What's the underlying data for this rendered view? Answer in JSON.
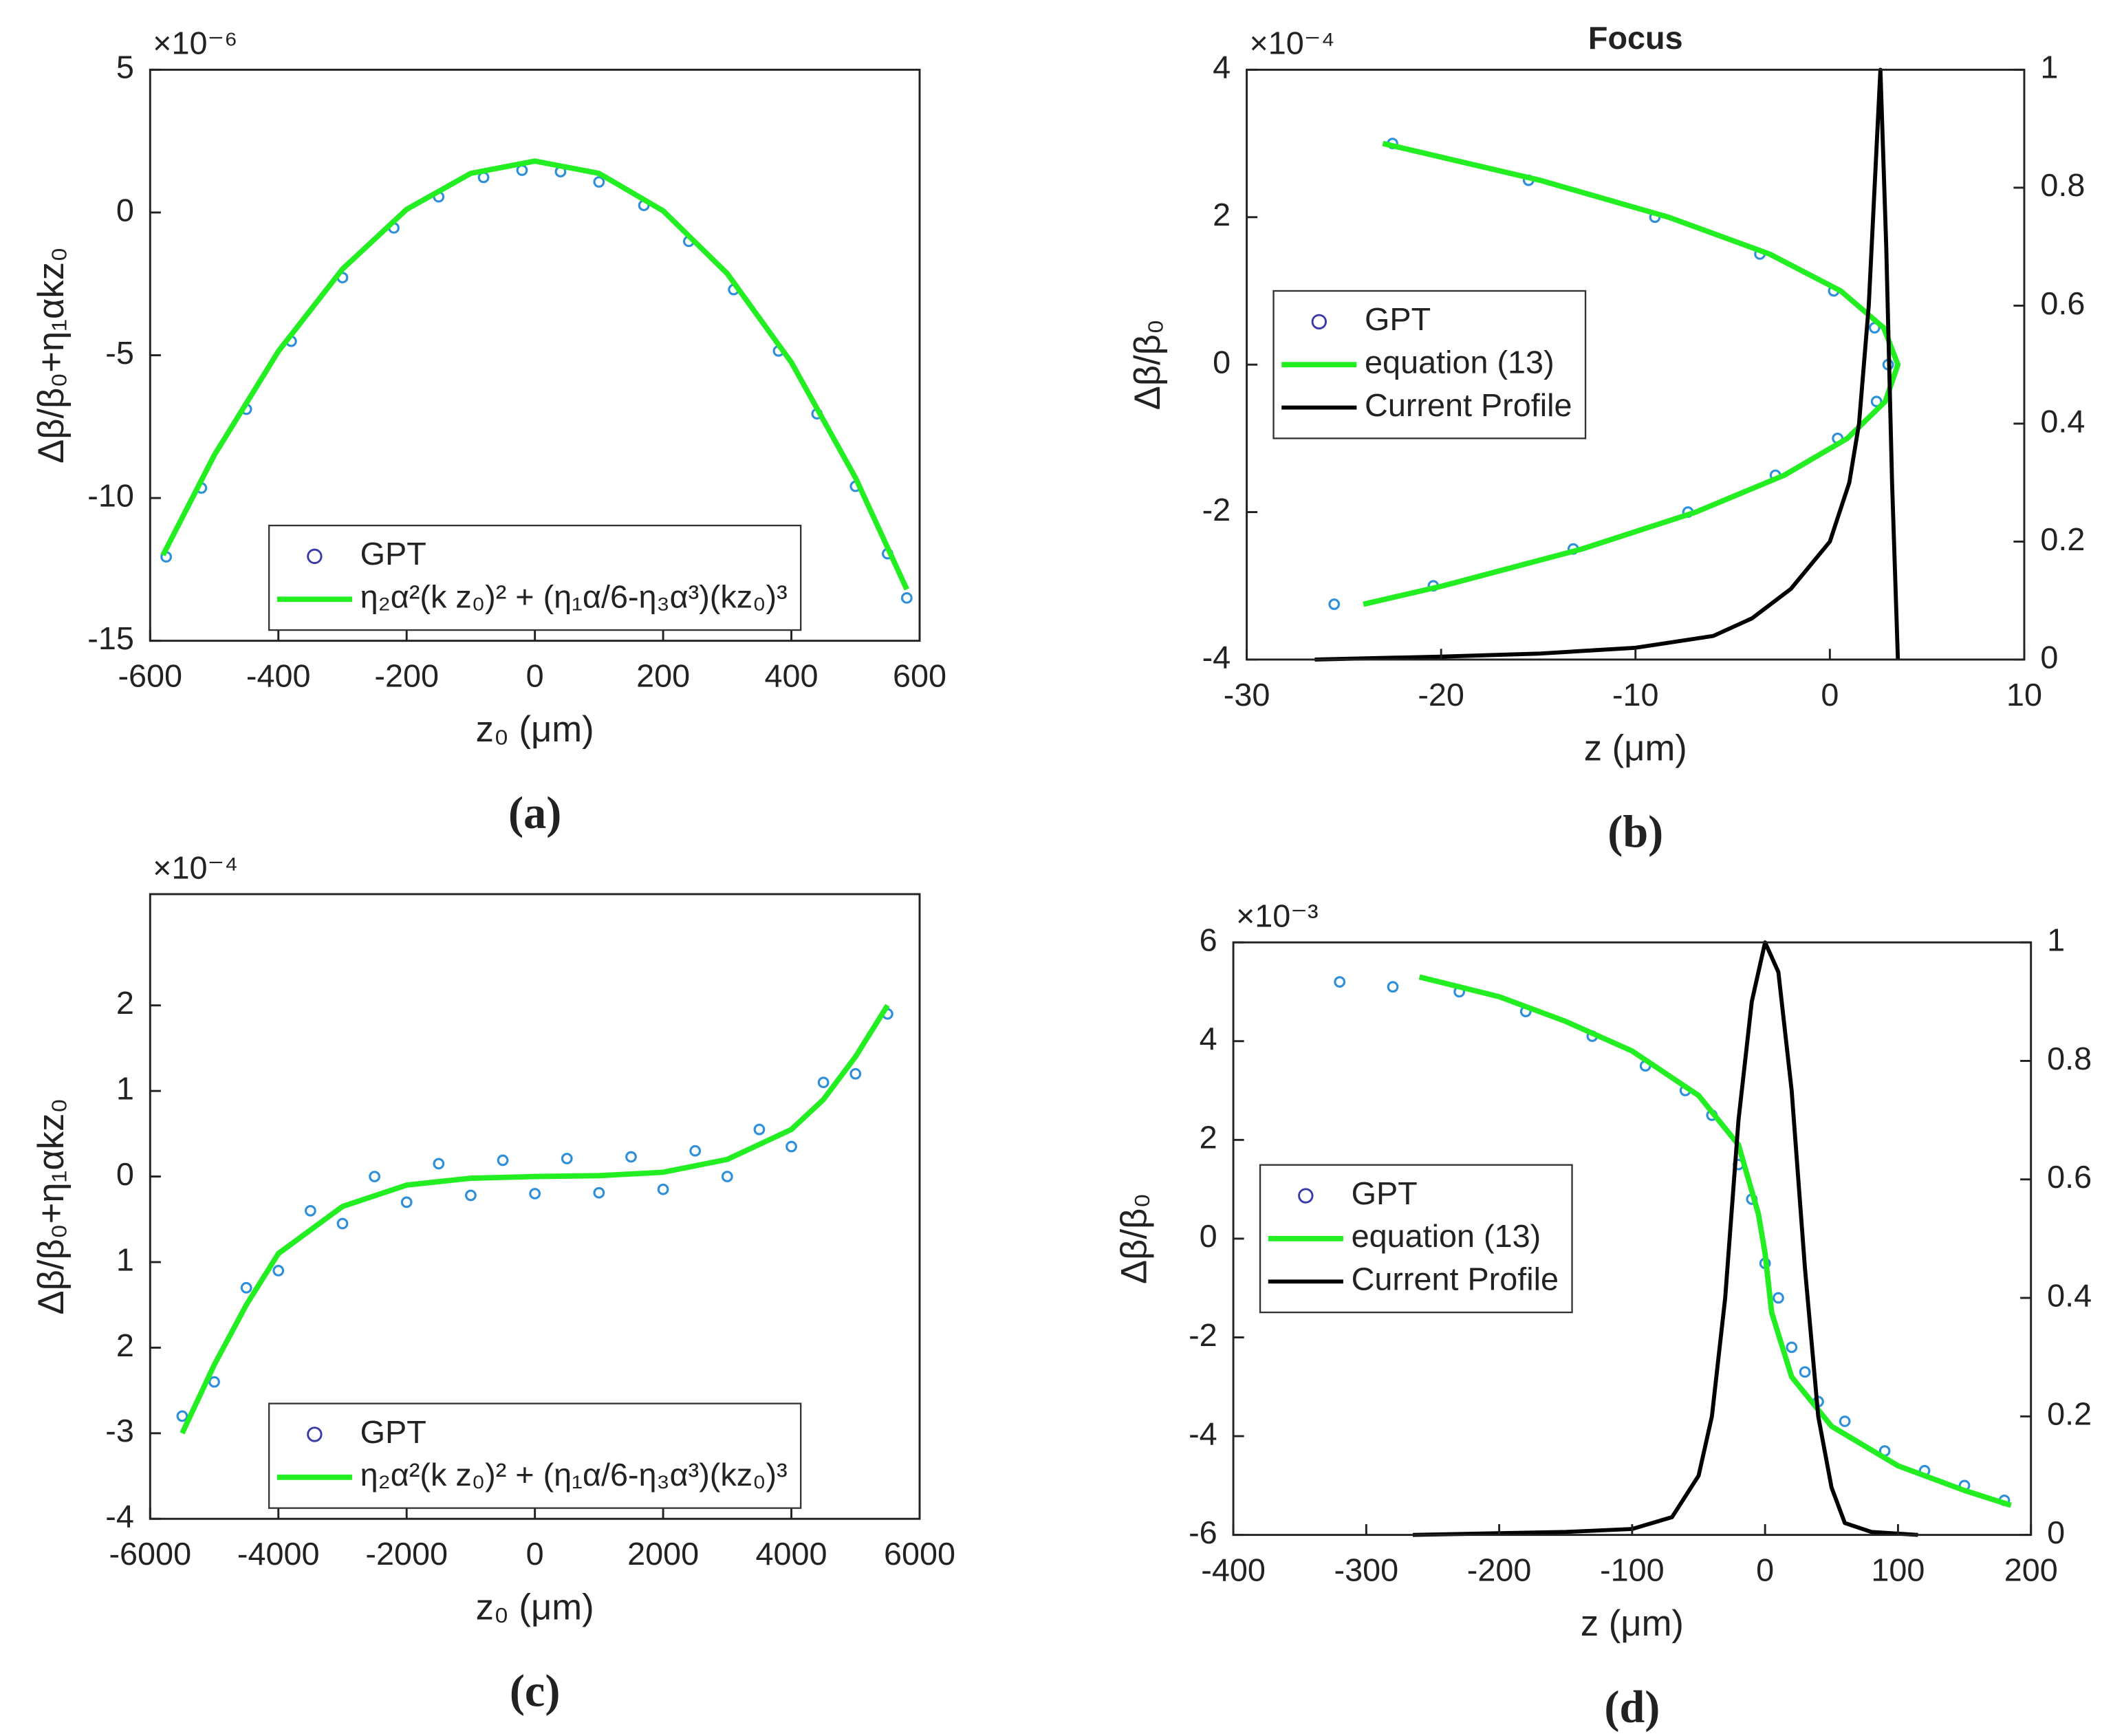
{
  "chart_data": [
    {
      "type": "scatter",
      "caption": "(a)",
      "xlabel": "z₀ (μm)",
      "ylabel": "Δβ/β₀+η₁αkz₀",
      "yscale_label": "×10⁻⁶",
      "xlim": [
        -600,
        600
      ],
      "xticks": [
        -600,
        -400,
        -200,
        0,
        200,
        400,
        600
      ],
      "ylim": [
        -15,
        5
      ],
      "yticks": [
        -15,
        -10,
        -5,
        0,
        5
      ],
      "legend": "lower center",
      "series": [
        {
          "name": "GPT",
          "type": "scatter",
          "color": "#2f8fd8",
          "x": [
            -575,
            -520,
            -450,
            -380,
            -300,
            -220,
            -150,
            -80,
            -20,
            40,
            100,
            170,
            240,
            310,
            380,
            440,
            500,
            550,
            580
          ],
          "values": [
            -12.06,
            -9.65,
            -6.89,
            -4.51,
            -2.28,
            -0.54,
            0.55,
            1.23,
            1.48,
            1.43,
            1.07,
            0.25,
            -1.01,
            -2.7,
            -4.85,
            -7.05,
            -9.59,
            -11.95,
            -13.5
          ]
        },
        {
          "name": "η₂α²(k z₀)² + (η₁α/6-η₃α³)(kz₀)³",
          "type": "line",
          "color": "#22ee22",
          "x": [
            -580,
            -500,
            -400,
            -300,
            -200,
            -100,
            0,
            100,
            200,
            300,
            400,
            500,
            580
          ],
          "values": [
            -12.0,
            -8.5,
            -4.86,
            -1.98,
            0.11,
            1.37,
            1.8,
            1.37,
            0.06,
            -2.14,
            -5.25,
            -9.29,
            -13.2
          ]
        }
      ]
    },
    {
      "type": "scatter",
      "title": "Focus",
      "caption": "(b)",
      "xlabel": "z (μm)",
      "ylabel": "Δβ/β₀",
      "yscale_label": "×10⁻⁴",
      "xlim": [
        -30,
        10
      ],
      "xticks": [
        -30,
        -20,
        -10,
        0,
        10
      ],
      "ylim": [
        -4,
        4
      ],
      "yticks": [
        -4,
        -2,
        0,
        2,
        4
      ],
      "y2lim": [
        0,
        1
      ],
      "y2ticks": [
        0,
        0.2,
        0.4,
        0.6,
        0.8,
        1
      ],
      "legend": "center left",
      "series": [
        {
          "name": "GPT",
          "type": "scatter",
          "color": "#2f8fd8",
          "x": [
            -22.5,
            -15.5,
            -9,
            -3.6,
            0.2,
            2.3,
            3.0,
            2.4,
            0.4,
            -2.8,
            -7.3,
            -13.2,
            -20.4,
            -25.5
          ],
          "values": [
            3.0,
            2.5,
            2,
            1.5,
            1,
            0.5,
            0,
            -0.5,
            -1,
            -1.5,
            -2,
            -2.5,
            -3,
            -3.25
          ]
        },
        {
          "name": "equation (13)",
          "type": "line",
          "color": "#22ee22",
          "x": [
            -23,
            -14.9,
            -8.3,
            -3.1,
            0.56,
            2.77,
            3.5,
            2.85,
            0.9,
            -2.35,
            -6.9,
            -12.75,
            -19.9,
            -24.0
          ],
          "values": [
            3.0,
            2.5,
            2,
            1.5,
            1,
            0.5,
            0,
            -0.5,
            -1,
            -1.5,
            -2,
            -2.5,
            -3,
            -3.25
          ]
        },
        {
          "name": "Current  Profile",
          "type": "line",
          "color": "#000000",
          "axis": "y2",
          "x": [
            -26.5,
            -20,
            -15,
            -10,
            -6,
            -4,
            -2,
            0,
            1,
            1.5,
            2,
            2.3,
            2.6,
            2.9,
            3.2,
            3.5
          ],
          "values": [
            0,
            0.005,
            0.01,
            0.02,
            0.04,
            0.07,
            0.12,
            0.2,
            0.3,
            0.4,
            0.6,
            0.8,
            1.0,
            0.7,
            0.3,
            0
          ]
        }
      ]
    },
    {
      "type": "scatter",
      "caption": "(c)",
      "xlabel": "z₀ (μm)",
      "ylabel": "Δβ/β₀+η₁αkz₀",
      "yscale_label": "×10⁻⁴",
      "xlim": [
        -6000,
        6000
      ],
      "xticks": [
        -6000,
        -4000,
        -2000,
        0,
        2000,
        4000,
        6000
      ],
      "ylim": [
        -4,
        3.3
      ],
      "yticks": [
        -4,
        -3,
        {
          "value": -2,
          "label": "2"
        },
        {
          "value": -1,
          "label": "1"
        },
        0,
        1,
        2
      ],
      "legend": "lower center",
      "series": [
        {
          "name": "GPT",
          "type": "scatter",
          "color": "#2f8fd8",
          "x": [
            -5500,
            -5000,
            -4500,
            -4000,
            -3500,
            -3000,
            -2500,
            -2000,
            -1500,
            -1000,
            -500,
            0,
            500,
            1000,
            1500,
            2000,
            2500,
            3000,
            3500,
            4000,
            4500,
            5000,
            5500
          ],
          "values": [
            -2.8,
            -2.4,
            -1.3,
            -1.1,
            -0.4,
            -0.55,
            0,
            -0.3,
            0.15,
            -0.22,
            0.19,
            -0.2,
            0.21,
            -0.19,
            0.23,
            -0.15,
            0.3,
            0,
            0.55,
            0.35,
            1.1,
            1.2,
            1.9
          ]
        },
        {
          "name": "η₂α²(k z₀)² + (η₁α/6-η₃α³)(kz₀)³",
          "type": "line",
          "color": "#22ee22",
          "x": [
            -5500,
            -5000,
            -4500,
            -4000,
            -3000,
            -2000,
            -1000,
            0,
            1000,
            2000,
            3000,
            4000,
            4500,
            5000,
            5500
          ],
          "values": [
            -3,
            -2.2,
            -1.5,
            -0.9,
            -0.35,
            -0.1,
            -0.02,
            0,
            0.01,
            0.05,
            0.2,
            0.55,
            0.9,
            1.4,
            2
          ]
        }
      ]
    },
    {
      "type": "scatter",
      "caption": "(d)",
      "xlabel": "z (μm)",
      "ylabel": "Δβ/β₀",
      "yscale_label": "×10⁻³",
      "xlim": [
        -400,
        200
      ],
      "xticks": [
        -400,
        -300,
        -200,
        -100,
        0,
        100,
        200
      ],
      "ylim": [
        -6,
        6
      ],
      "yticks": [
        -6,
        -4,
        -2,
        0,
        2,
        4,
        6
      ],
      "y2lim": [
        0,
        1
      ],
      "y2ticks": [
        0,
        0.2,
        0.4,
        0.6,
        0.8,
        1
      ],
      "legend": "center left",
      "series": [
        {
          "name": "GPT",
          "type": "scatter",
          "color": "#2f8fd8",
          "x": [
            -320,
            -280,
            -230,
            -180,
            -130,
            -90,
            -60,
            -40,
            -20,
            -10,
            0,
            10,
            20,
            30,
            40,
            60,
            90,
            120,
            150,
            180
          ],
          "values": [
            5.2,
            5.1,
            5.0,
            4.6,
            4.1,
            3.5,
            3.0,
            2.5,
            1.5,
            0.8,
            -0.5,
            -1.2,
            -2.2,
            -2.7,
            -3.3,
            -3.7,
            -4.3,
            -4.7,
            -5.0,
            -5.3
          ]
        },
        {
          "name": "equation (13)",
          "type": "line",
          "color": "#22ee22",
          "x": [
            -260,
            -200,
            -150,
            -100,
            -50,
            -20,
            -5,
            0,
            5,
            20,
            50,
            100,
            150,
            185
          ],
          "values": [
            5.3,
            4.9,
            4.4,
            3.8,
            2.9,
            1.9,
            0.5,
            -0.3,
            -1.5,
            -2.8,
            -3.8,
            -4.6,
            -5.1,
            -5.4
          ]
        },
        {
          "name": "Current Profile",
          "type": "line",
          "color": "#000000",
          "axis": "y2",
          "x": [
            -265,
            -150,
            -100,
            -70,
            -50,
            -40,
            -30,
            -20,
            -10,
            0,
            10,
            20,
            30,
            40,
            50,
            60,
            80,
            115
          ],
          "values": [
            0,
            0.005,
            0.01,
            0.03,
            0.1,
            0.2,
            0.4,
            0.7,
            0.9,
            1.0,
            0.95,
            0.75,
            0.45,
            0.2,
            0.08,
            0.02,
            0.005,
            0
          ]
        }
      ]
    }
  ]
}
